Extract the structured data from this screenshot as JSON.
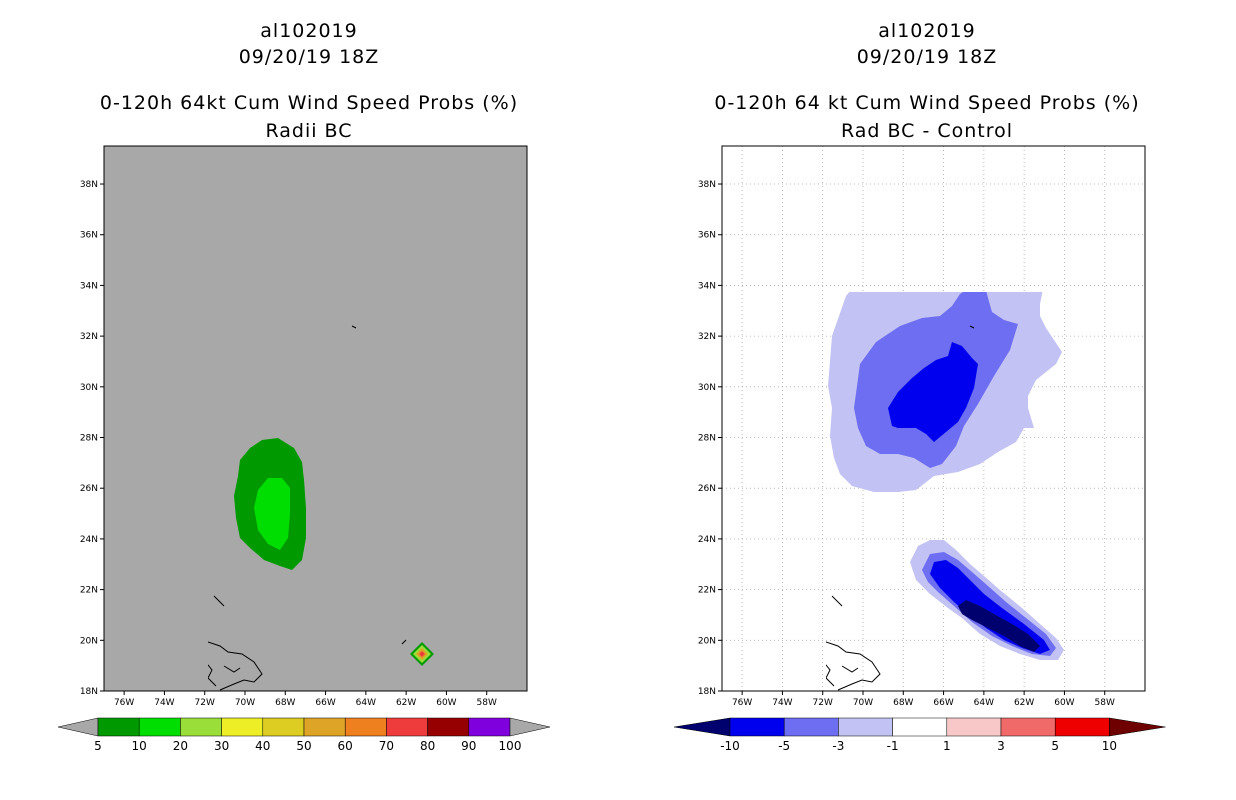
{
  "left": {
    "storm_id": "al102019",
    "datetime": "09/20/19 18Z",
    "product": "0-120h 64kt Cum Wind Speed Probs (%)",
    "subtitle": "Radii BC",
    "colorbar": {
      "labels": [
        "5",
        "10",
        "20",
        "30",
        "40",
        "50",
        "60",
        "70",
        "80",
        "90",
        "100"
      ],
      "colors": [
        "#009a00",
        "#00dd00",
        "#9ade3a",
        "#eeee26",
        "#ddcc22",
        "#dda428",
        "#ee8020",
        "#ee3c3c",
        "#960000",
        "#8000dd"
      ],
      "extend_color": "#a8a8a8"
    }
  },
  "right": {
    "storm_id": "al102019",
    "datetime": "09/20/19 18Z",
    "product": "0-120h 64 kt Cum Wind Speed Probs (%)",
    "subtitle": "Rad BC - Control",
    "colorbar": {
      "labels": [
        "-10",
        "-5",
        "-3",
        "-1",
        "1",
        "3",
        "5",
        "10"
      ],
      "colors": [
        "#0000ee",
        "#6e6ef2",
        "#c2c2f4",
        "#ffffff",
        "#f8c8c8",
        "#f06a6a",
        "#ee0000"
      ],
      "low_extend": "#00006e",
      "high_extend": "#6e0000"
    }
  },
  "chart_data": [
    {
      "type": "contour-map",
      "title": "0-120h 64kt Cum Wind Speed Probs (%)",
      "subtitle": "Radii BC",
      "units": "%",
      "xlim": [
        -77,
        -56
      ],
      "ylim": [
        18,
        39.5
      ],
      "x_ticks": [
        "76W",
        "74W",
        "72W",
        "70W",
        "68W",
        "66W",
        "64W",
        "62W",
        "60W",
        "58W"
      ],
      "y_ticks": [
        "18N",
        "20N",
        "22N",
        "24N",
        "26N",
        "28N",
        "30N",
        "32N",
        "34N",
        "36N",
        "38N"
      ],
      "background": "#a8a8a8",
      "grid": false,
      "features": [
        {
          "name": "5-10% region",
          "level": 5,
          "color": "#009a00",
          "center_lon": -68.8,
          "center_lat": 25.5
        },
        {
          "name": "10-20% region",
          "level": 10,
          "color": "#00dd00",
          "center_lon": -68.9,
          "center_lat": 25.0
        },
        {
          "name": "isolated max near 61.8W 19.5N",
          "levels": [
            5,
            20,
            70
          ],
          "center_lon": -61.8,
          "center_lat": 19.5
        }
      ]
    },
    {
      "type": "contour-map",
      "title": "0-120h 64 kt Cum Wind Speed Probs (%)",
      "subtitle": "Rad BC - Control",
      "units": "%",
      "xlim": [
        -77,
        -56
      ],
      "ylim": [
        18,
        39.5
      ],
      "x_ticks": [
        "76W",
        "74W",
        "72W",
        "70W",
        "68W",
        "66W",
        "64W",
        "62W",
        "60W",
        "58W"
      ],
      "y_ticks": [
        "18N",
        "20N",
        "22N",
        "24N",
        "26N",
        "28N",
        "30N",
        "32N",
        "34N",
        "36N",
        "38N"
      ],
      "grid": true,
      "features": [
        {
          "name": "northern -1 to -3 region",
          "level": -1,
          "color": "#c2c2f4"
        },
        {
          "name": "northern -3 to -5 region",
          "level": -3,
          "color": "#6e6ef2"
        },
        {
          "name": "northern -5 to -10 region",
          "level": -5,
          "color": "#0000ee"
        },
        {
          "name": "southern -1 to -3 band",
          "level": -1,
          "color": "#c2c2f4"
        },
        {
          "name": "southern -3 to -5 band",
          "level": -3,
          "color": "#6e6ef2"
        },
        {
          "name": "southern -5 to -10 band",
          "level": -5,
          "color": "#0000ee"
        },
        {
          "name": "southern below -10 core",
          "level": -10,
          "color": "#00006e"
        }
      ]
    }
  ]
}
